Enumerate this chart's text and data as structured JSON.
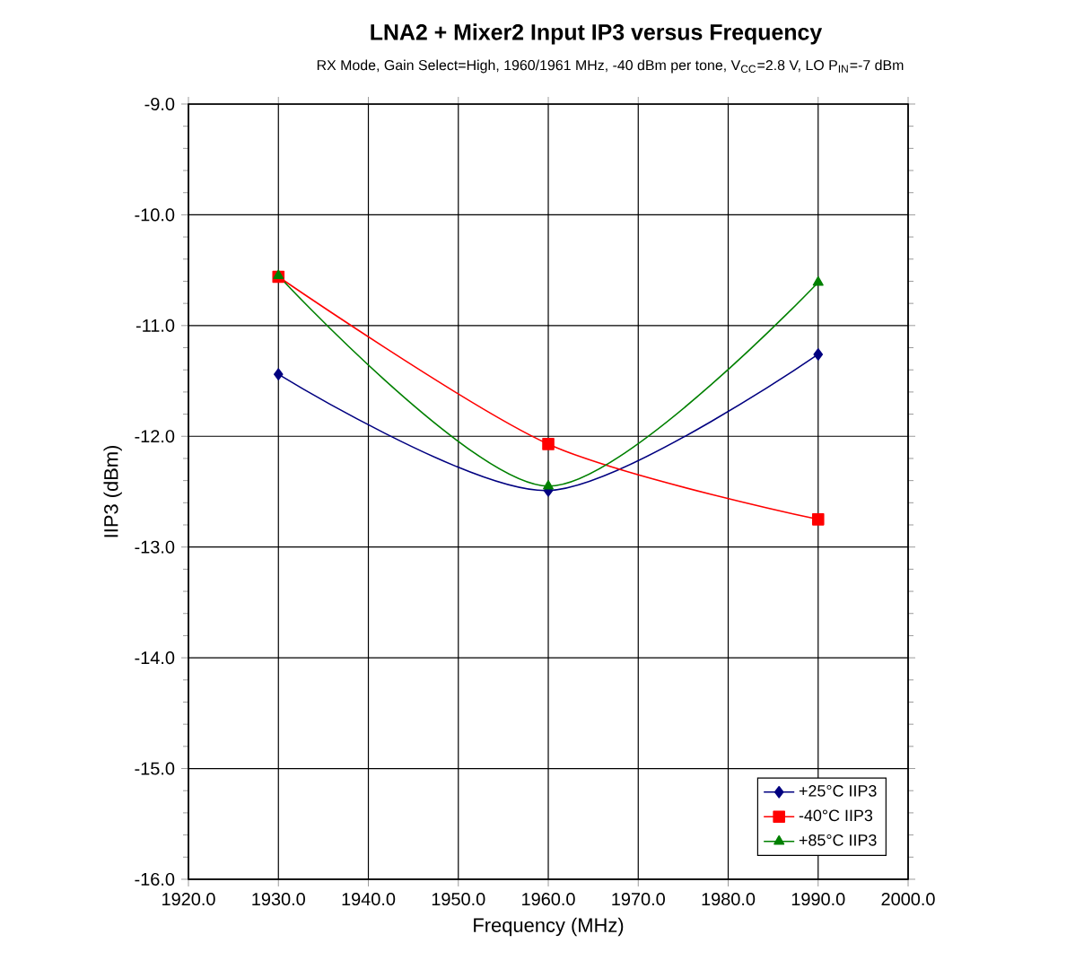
{
  "chart_data": {
    "type": "line",
    "title": "LNA2 + Mixer2 Input IP3 versus Frequency",
    "subtitle": "RX Mode, Gain Select=High, 1960/1961 MHz, -40 dBm per tone, V$_{CC}$=2.8 V, LO P$_{IN}$=-7 dBm",
    "xlabel": "Frequency (MHz)",
    "ylabel": "IIP3 (dBm)",
    "x": [
      1930,
      1960,
      1990
    ],
    "series": [
      {
        "name": "+25°C IIP3",
        "color": "#000080",
        "marker": "diamond",
        "values": [
          -11.44,
          -12.49,
          -11.26
        ]
      },
      {
        "name": "-40°C IIP3",
        "color": "#ff0000",
        "marker": "square",
        "values": [
          -10.56,
          -12.07,
          -12.75
        ]
      },
      {
        "name": "+85°C IIP3",
        "color": "#008000",
        "marker": "triangle",
        "values": [
          -10.55,
          -12.45,
          -10.61
        ]
      }
    ],
    "xlim": [
      1920,
      2000
    ],
    "xticks": [
      {
        "value": 1920,
        "label": "1920.0"
      },
      {
        "value": 1930,
        "label": "1930.0"
      },
      {
        "value": 1940,
        "label": "1940.0"
      },
      {
        "value": 1950,
        "label": "1950.0"
      },
      {
        "value": 1960,
        "label": "1960.0"
      },
      {
        "value": 1970,
        "label": "1970.0"
      },
      {
        "value": 1980,
        "label": "1980.0"
      },
      {
        "value": 1990,
        "label": "1990.0"
      },
      {
        "value": 2000,
        "label": "2000.0"
      }
    ],
    "ylim": [
      -16,
      -9
    ],
    "yticks": [
      {
        "value": -16,
        "label": "-16.0"
      },
      {
        "value": -15,
        "label": "-15.0"
      },
      {
        "value": -14,
        "label": "-14.0"
      },
      {
        "value": -13,
        "label": "-13.0"
      },
      {
        "value": -12,
        "label": "-12.0"
      },
      {
        "value": -11,
        "label": "-11.0"
      },
      {
        "value": -10,
        "label": "-10.0"
      },
      {
        "value": -9,
        "label": "-9.0"
      }
    ],
    "grid": true,
    "legend": "bottom right",
    "line_style": "solid"
  }
}
